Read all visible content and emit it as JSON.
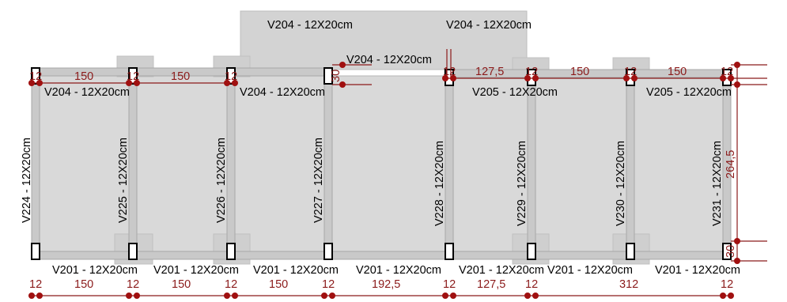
{
  "beam_labels": {
    "top_upper": [
      "V204 - 12X20cm",
      "V204 - 12X20cm"
    ],
    "top_mid": "V204 - 12X20cm",
    "upper_row": [
      "V204 - 12X20cm",
      "V204 - 12X20cm",
      "V205 - 12X20cm",
      "V205 - 12X20cm"
    ],
    "bottom_row": [
      "V201 - 12X20cm",
      "V201 - 12X20cm",
      "V201 - 12X20cm",
      "V201 - 12X20cm",
      "V201 - 12X20cm",
      "V201 - 12X20cm",
      "V201 - 12X20cm"
    ],
    "vertical": [
      "V224 - 12X20cm",
      "V225 - 12X20cm",
      "V226 - 12X20cm",
      "V227 - 12X20cm",
      "V228 - 12X20cm",
      "V229 - 12X20cm",
      "V230 - 12X20cm",
      "V231 - 12X20cm"
    ]
  },
  "dimensions": {
    "top_column": "12",
    "top_spans": [
      "150",
      "150",
      "127,5",
      "150",
      "150"
    ],
    "bottom_column": "12",
    "bottom_spans": [
      "150",
      "150",
      "150",
      "192,5",
      "127,5",
      "312"
    ],
    "right_height": "264,5",
    "small_30_a": "30",
    "small_30_b": "30"
  },
  "colors": {
    "dimension": "#8b1a1a",
    "slab": "#d9d9d9",
    "pillar_stroke": "#000000"
  }
}
